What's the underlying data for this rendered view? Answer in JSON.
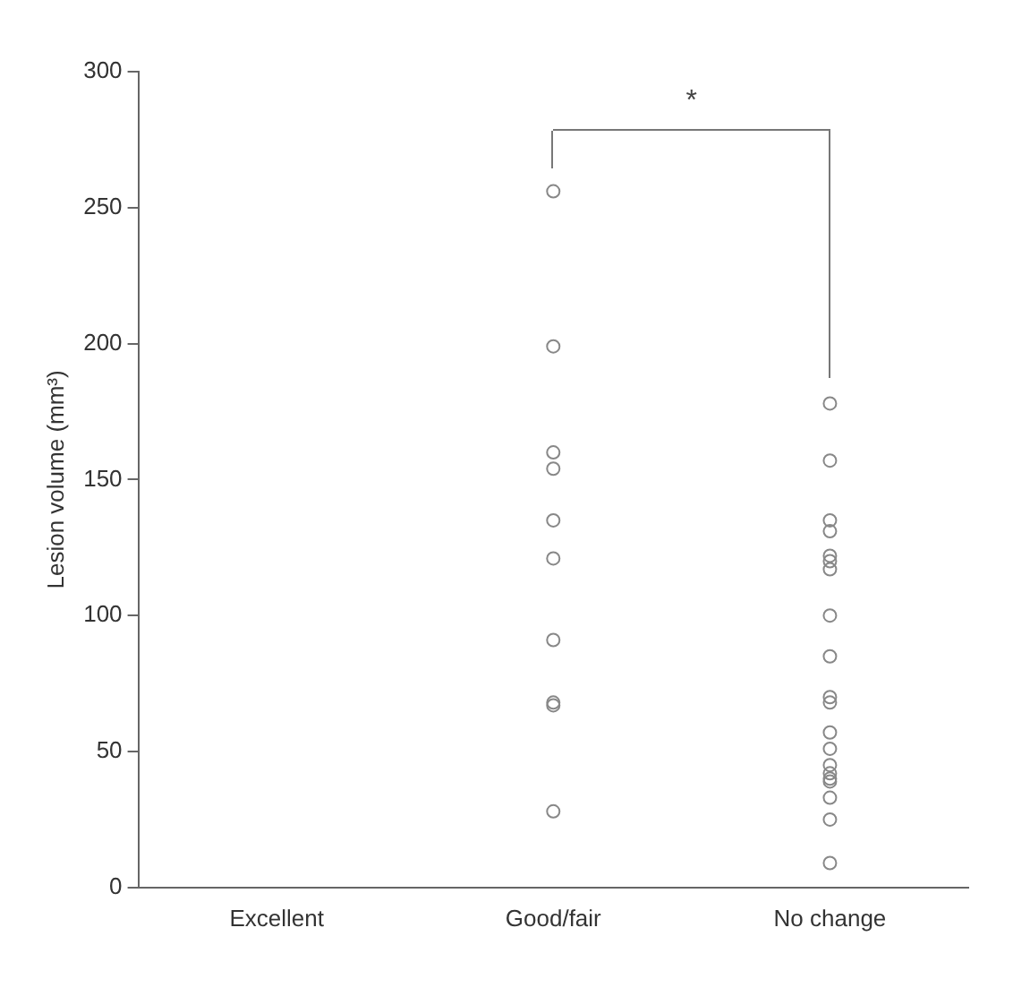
{
  "chart_data": {
    "type": "scatter",
    "ylabel": "Lesion volume (mm³)",
    "categories": [
      "Excellent",
      "Good/fair",
      "No change"
    ],
    "series": [
      {
        "color": "#888888",
        "x": [
          "Good/fair",
          "Good/fair",
          "Good/fair",
          "Good/fair",
          "Good/fair",
          "Good/fair",
          "Good/fair",
          "Good/fair",
          "Good/fair",
          "Good/fair",
          "No change",
          "No change",
          "No change",
          "No change",
          "No change",
          "No change",
          "No change",
          "No change",
          "No change",
          "No change",
          "No change",
          "No change",
          "No change",
          "No change",
          "No change",
          "No change",
          "No change",
          "No change",
          "No change",
          "No change"
        ],
        "values": [
          256,
          199,
          160,
          154,
          135,
          121,
          91,
          67,
          68,
          28,
          178,
          157,
          135,
          131,
          122,
          120,
          117,
          100,
          85,
          70,
          68,
          57,
          51,
          45,
          42,
          40,
          39,
          33,
          25,
          9
        ]
      }
    ],
    "ylim": [
      0,
      300
    ],
    "yticks": [
      0,
      50,
      100,
      150,
      200,
      250,
      300
    ],
    "grid": false,
    "legend": false,
    "marker": "circle",
    "annotations": [
      "*"
    ]
  }
}
